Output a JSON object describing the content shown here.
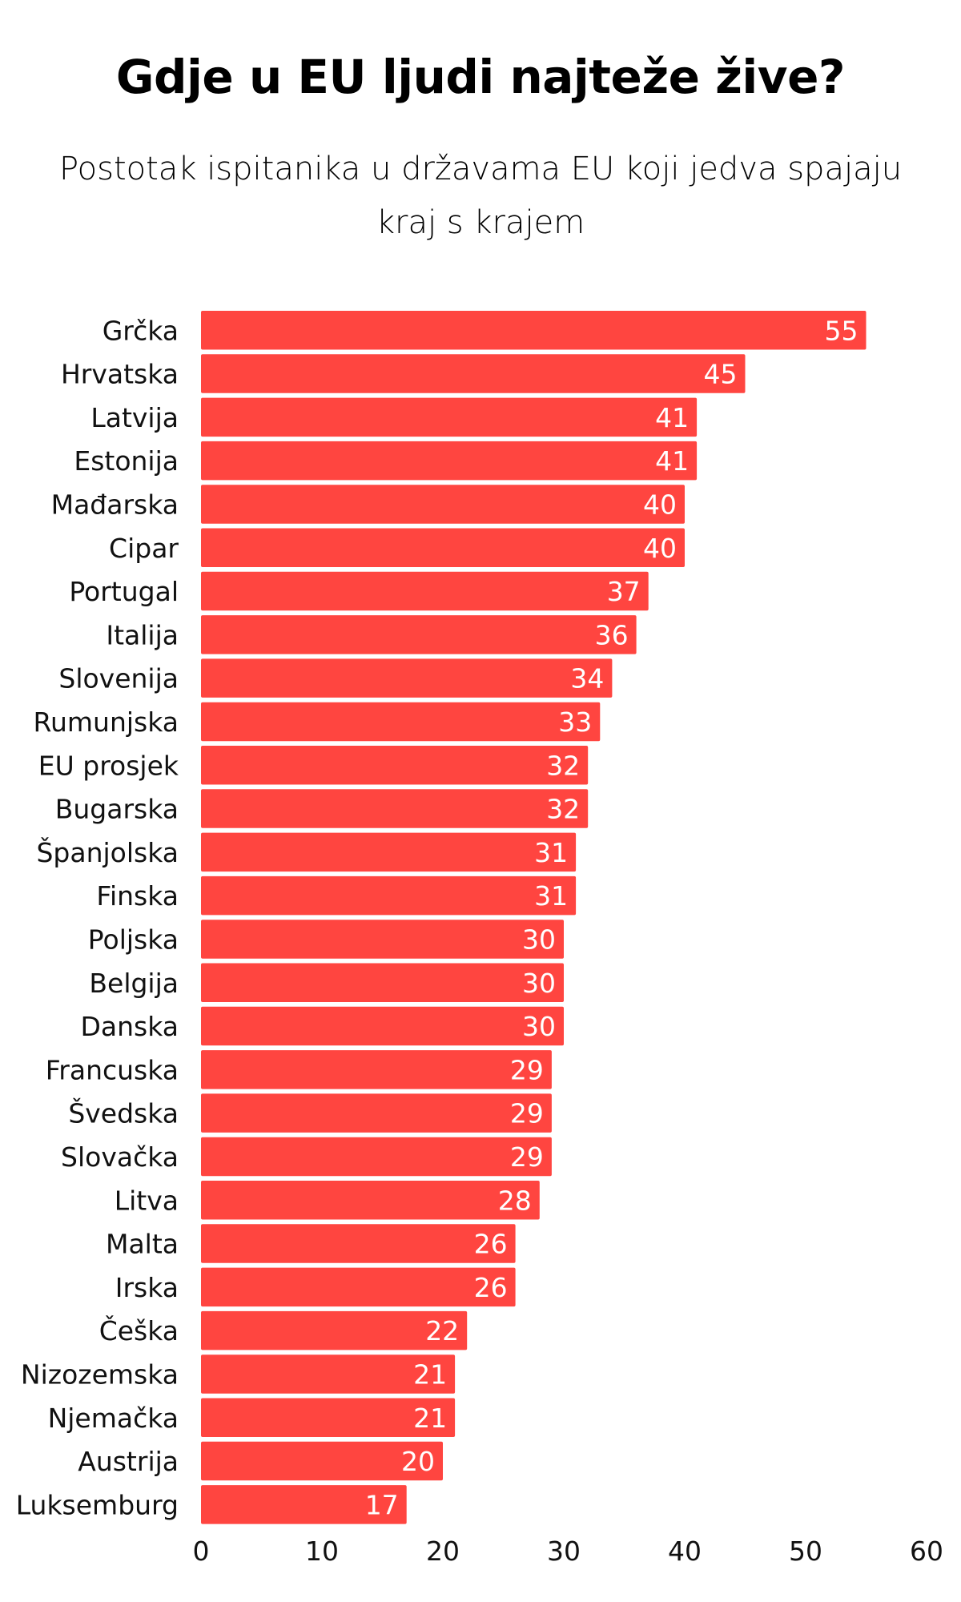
{
  "chart_data": {
    "type": "bar",
    "orientation": "horizontal",
    "title": "Gdje u EU ljudi najteže žive?",
    "subtitle": "Postotak ispitanika u državama EU koji jedva spajaju kraj s krajem",
    "categories": [
      "Grčka",
      "Hrvatska",
      "Latvija",
      "Estonija",
      "Mađarska",
      "Cipar",
      "Portugal",
      "Italija",
      "Slovenija",
      "Rumunjska",
      "EU prosjek",
      "Bugarska",
      "Španjolska",
      "Finska",
      "Poljska",
      "Belgija",
      "Danska",
      "Francuska",
      "Švedska",
      "Slovačka",
      "Litva",
      "Malta",
      "Irska",
      "Češka",
      "Nizozemska",
      "Njemačka",
      "Austrija",
      "Luksemburg"
    ],
    "values": [
      55,
      45,
      41,
      41,
      40,
      40,
      37,
      36,
      34,
      33,
      32,
      32,
      31,
      31,
      30,
      30,
      30,
      29,
      29,
      29,
      28,
      26,
      26,
      22,
      21,
      21,
      20,
      17
    ],
    "xlim": [
      0,
      60
    ],
    "xticks": [
      0,
      10,
      20,
      30,
      40,
      50,
      60
    ],
    "xlabel": "",
    "ylabel": "",
    "grid": false,
    "data_labels": true,
    "bar_color": "#FF4540"
  }
}
